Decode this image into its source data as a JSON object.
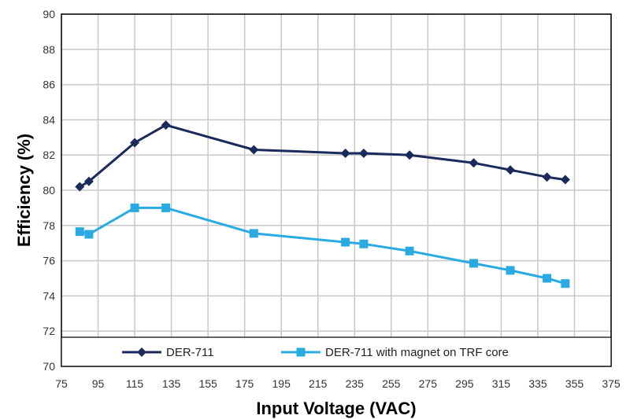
{
  "chart_data": {
    "type": "line",
    "xlabel": "Input Voltage (VAC)",
    "ylabel": "Efficiency (%)",
    "xlim": [
      75,
      375
    ],
    "ylim": [
      70,
      90
    ],
    "x_ticks": [
      "75",
      "95",
      "115",
      "135",
      "155",
      "175",
      "195",
      "215",
      "235",
      "255",
      "275",
      "295",
      "315",
      "335",
      "355",
      "375"
    ],
    "y_ticks": [
      "70",
      "72",
      "74",
      "76",
      "78",
      "80",
      "82",
      "84",
      "86",
      "88",
      "90"
    ],
    "grid": true,
    "legend_position": "bottom",
    "series": [
      {
        "name": "DER-711",
        "color": "#1a2a5a",
        "marker": "diamond",
        "x": [
          85,
          90,
          115,
          132,
          180,
          230,
          240,
          265,
          300,
          320,
          340,
          350
        ],
        "y": [
          80.2,
          80.5,
          82.7,
          83.7,
          82.3,
          82.1,
          82.1,
          82.0,
          81.55,
          81.15,
          80.75,
          80.6
        ]
      },
      {
        "name": "DER-711 with magnet on TRF core",
        "color": "#29abe2",
        "marker": "square",
        "x": [
          85,
          90,
          115,
          132,
          180,
          230,
          240,
          265,
          300,
          320,
          340,
          350
        ],
        "y": [
          77.65,
          77.5,
          79.0,
          79.0,
          77.55,
          77.05,
          76.95,
          76.55,
          75.85,
          75.45,
          75.0,
          74.7
        ]
      }
    ]
  }
}
